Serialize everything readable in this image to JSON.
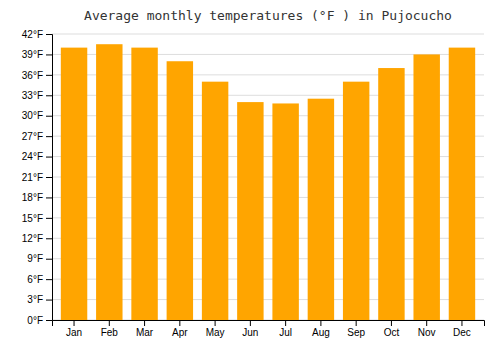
{
  "chart_data": {
    "type": "bar",
    "title": "Average monthly temperatures (°F ) in Pujocucho",
    "categories": [
      "Jan",
      "Feb",
      "Mar",
      "Apr",
      "May",
      "Jun",
      "Jul",
      "Aug",
      "Sep",
      "Oct",
      "Nov",
      "Dec"
    ],
    "values": [
      40.0,
      40.5,
      40.0,
      38.0,
      35.0,
      32.0,
      31.8,
      32.5,
      35.0,
      37.0,
      39.0,
      40.0
    ],
    "color": "#FFA500",
    "ylim": [
      0,
      42
    ],
    "yticks": [
      {
        "value": 0,
        "label": "0°F"
      },
      {
        "value": 3,
        "label": "3°F"
      },
      {
        "value": 6,
        "label": "6°F"
      },
      {
        "value": 9,
        "label": "9°F"
      },
      {
        "value": 12,
        "label": "12°F"
      },
      {
        "value": 15,
        "label": "15°F"
      },
      {
        "value": 18,
        "label": "18°F"
      },
      {
        "value": 21,
        "label": "21°F"
      },
      {
        "value": 24,
        "label": "24°F"
      },
      {
        "value": 27,
        "label": "27°F"
      },
      {
        "value": 30,
        "label": "30°F"
      },
      {
        "value": 33,
        "label": "33°F"
      },
      {
        "value": 36,
        "label": "36°F"
      },
      {
        "value": 39,
        "label": "39°F"
      },
      {
        "value": 42,
        "label": "42°F"
      }
    ],
    "grid": true
  }
}
